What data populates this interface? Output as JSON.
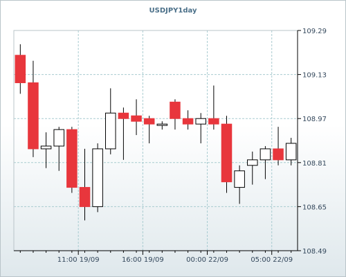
{
  "chart_data": {
    "type": "candlestick",
    "title": "USDJPY1day",
    "ylim": [
      108.49,
      109.29
    ],
    "yticks": [
      "109.29",
      "109.13",
      "108.97",
      "108.81",
      "108.65",
      "108.49"
    ],
    "xticks": [
      {
        "label": "11:00 19/09",
        "index": 4.5
      },
      {
        "label": "16:00 19/09",
        "index": 9.5
      },
      {
        "label": "00:00 22/09",
        "index": 14.5
      },
      {
        "label": "05:00 22/09",
        "index": 19.5
      }
    ],
    "colors": {
      "up_fill": "#ffffff",
      "down_fill": "#e8363c",
      "outline": "#000000",
      "grid": "#a8cbd0"
    },
    "series": [
      {
        "open": 109.2,
        "high": 109.24,
        "low": 109.06,
        "close": 109.1
      },
      {
        "open": 109.1,
        "high": 109.18,
        "low": 108.83,
        "close": 108.86
      },
      {
        "open": 108.86,
        "high": 108.92,
        "low": 108.79,
        "close": 108.87
      },
      {
        "open": 108.87,
        "high": 108.94,
        "low": 108.78,
        "close": 108.93
      },
      {
        "open": 108.93,
        "high": 108.94,
        "low": 108.7,
        "close": 108.72
      },
      {
        "open": 108.72,
        "high": 108.86,
        "low": 108.6,
        "close": 108.65
      },
      {
        "open": 108.65,
        "high": 108.88,
        "low": 108.63,
        "close": 108.86
      },
      {
        "open": 108.86,
        "high": 109.08,
        "low": 108.84,
        "close": 108.99
      },
      {
        "open": 108.99,
        "high": 109.01,
        "low": 108.82,
        "close": 108.97
      },
      {
        "open": 108.98,
        "high": 109.04,
        "low": 108.91,
        "close": 108.96
      },
      {
        "open": 108.97,
        "high": 108.98,
        "low": 108.88,
        "close": 108.95
      },
      {
        "open": 108.95,
        "high": 108.96,
        "low": 108.93,
        "close": 108.95
      },
      {
        "open": 109.03,
        "high": 109.04,
        "low": 108.93,
        "close": 108.97
      },
      {
        "open": 108.97,
        "high": 109.0,
        "low": 108.93,
        "close": 108.95
      },
      {
        "open": 108.95,
        "high": 108.99,
        "low": 108.88,
        "close": 108.97
      },
      {
        "open": 108.97,
        "high": 109.09,
        "low": 108.93,
        "close": 108.95
      },
      {
        "open": 108.95,
        "high": 108.98,
        "low": 108.7,
        "close": 108.74
      },
      {
        "open": 108.72,
        "high": 108.8,
        "low": 108.66,
        "close": 108.78
      },
      {
        "open": 108.8,
        "high": 108.85,
        "low": 108.73,
        "close": 108.82
      },
      {
        "open": 108.82,
        "high": 108.87,
        "low": 108.75,
        "close": 108.86
      },
      {
        "open": 108.86,
        "high": 108.94,
        "low": 108.8,
        "close": 108.82
      },
      {
        "open": 108.82,
        "high": 108.9,
        "low": 108.8,
        "close": 108.88
      }
    ]
  }
}
